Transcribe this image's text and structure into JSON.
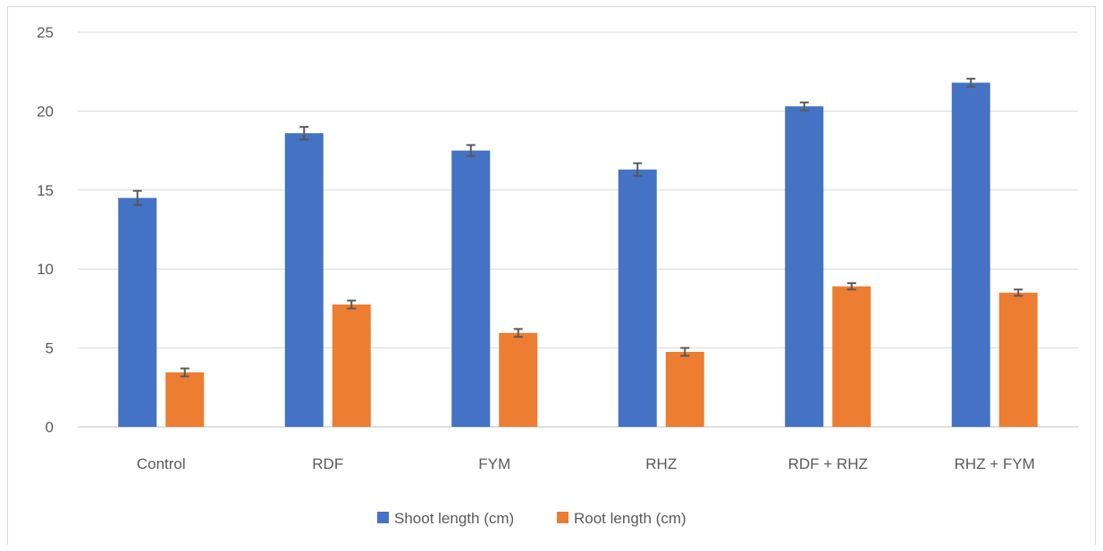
{
  "chart_data": {
    "type": "bar",
    "categories": [
      "Control",
      "RDF",
      "FYM",
      "RHZ",
      "RDF + RHZ",
      "RHZ + FYM"
    ],
    "series": [
      {
        "name": "Shoot length (cm)",
        "color": "#4472c4",
        "values": [
          14.5,
          18.6,
          17.5,
          16.3,
          20.3,
          21.8
        ],
        "errors": [
          0.45,
          0.4,
          0.35,
          0.4,
          0.25,
          0.25
        ]
      },
      {
        "name": "Root length (cm)",
        "color": "#ed7d31",
        "values": [
          3.45,
          7.75,
          5.95,
          4.75,
          8.9,
          8.5
        ],
        "errors": [
          0.25,
          0.25,
          0.25,
          0.25,
          0.2,
          0.2
        ]
      }
    ],
    "ylim": [
      0,
      25
    ],
    "yticks": [
      0,
      5,
      10,
      15,
      20,
      25
    ],
    "grid": true,
    "legend_position": "bottom",
    "title": "",
    "xlabel": "",
    "ylabel": ""
  }
}
